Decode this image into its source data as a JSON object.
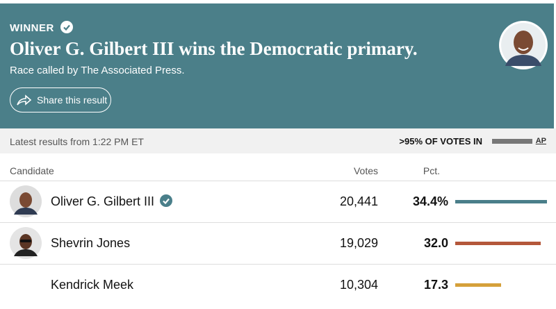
{
  "header": {
    "badge": "WINNER",
    "title": "Oliver G. Gilbert III wins the Democratic primary.",
    "subtitle": "Race called by The Associated Press.",
    "share_button": "Share this result"
  },
  "status": {
    "updated": "Latest results from 1:22 PM ET",
    "reporting": ">95% OF VOTES IN",
    "source": "AP"
  },
  "table": {
    "columns": [
      "Candidate",
      "Votes",
      "Pct."
    ],
    "rows": [
      {
        "name": "Oliver G. Gilbert III",
        "votes": "20,441",
        "pct": 34.4,
        "pct_label": "34.4%",
        "color": "#4a7f8a"
      },
      {
        "name": "Shevrin Jones",
        "votes": "19,029",
        "pct": 32.0,
        "pct_label": "32.0",
        "color": "#b4573a"
      },
      {
        "name": "Kendrick Meek",
        "votes": "10,304",
        "pct": 17.3,
        "pct_label": "17.3",
        "color": "#d5a03a"
      }
    ]
  }
}
